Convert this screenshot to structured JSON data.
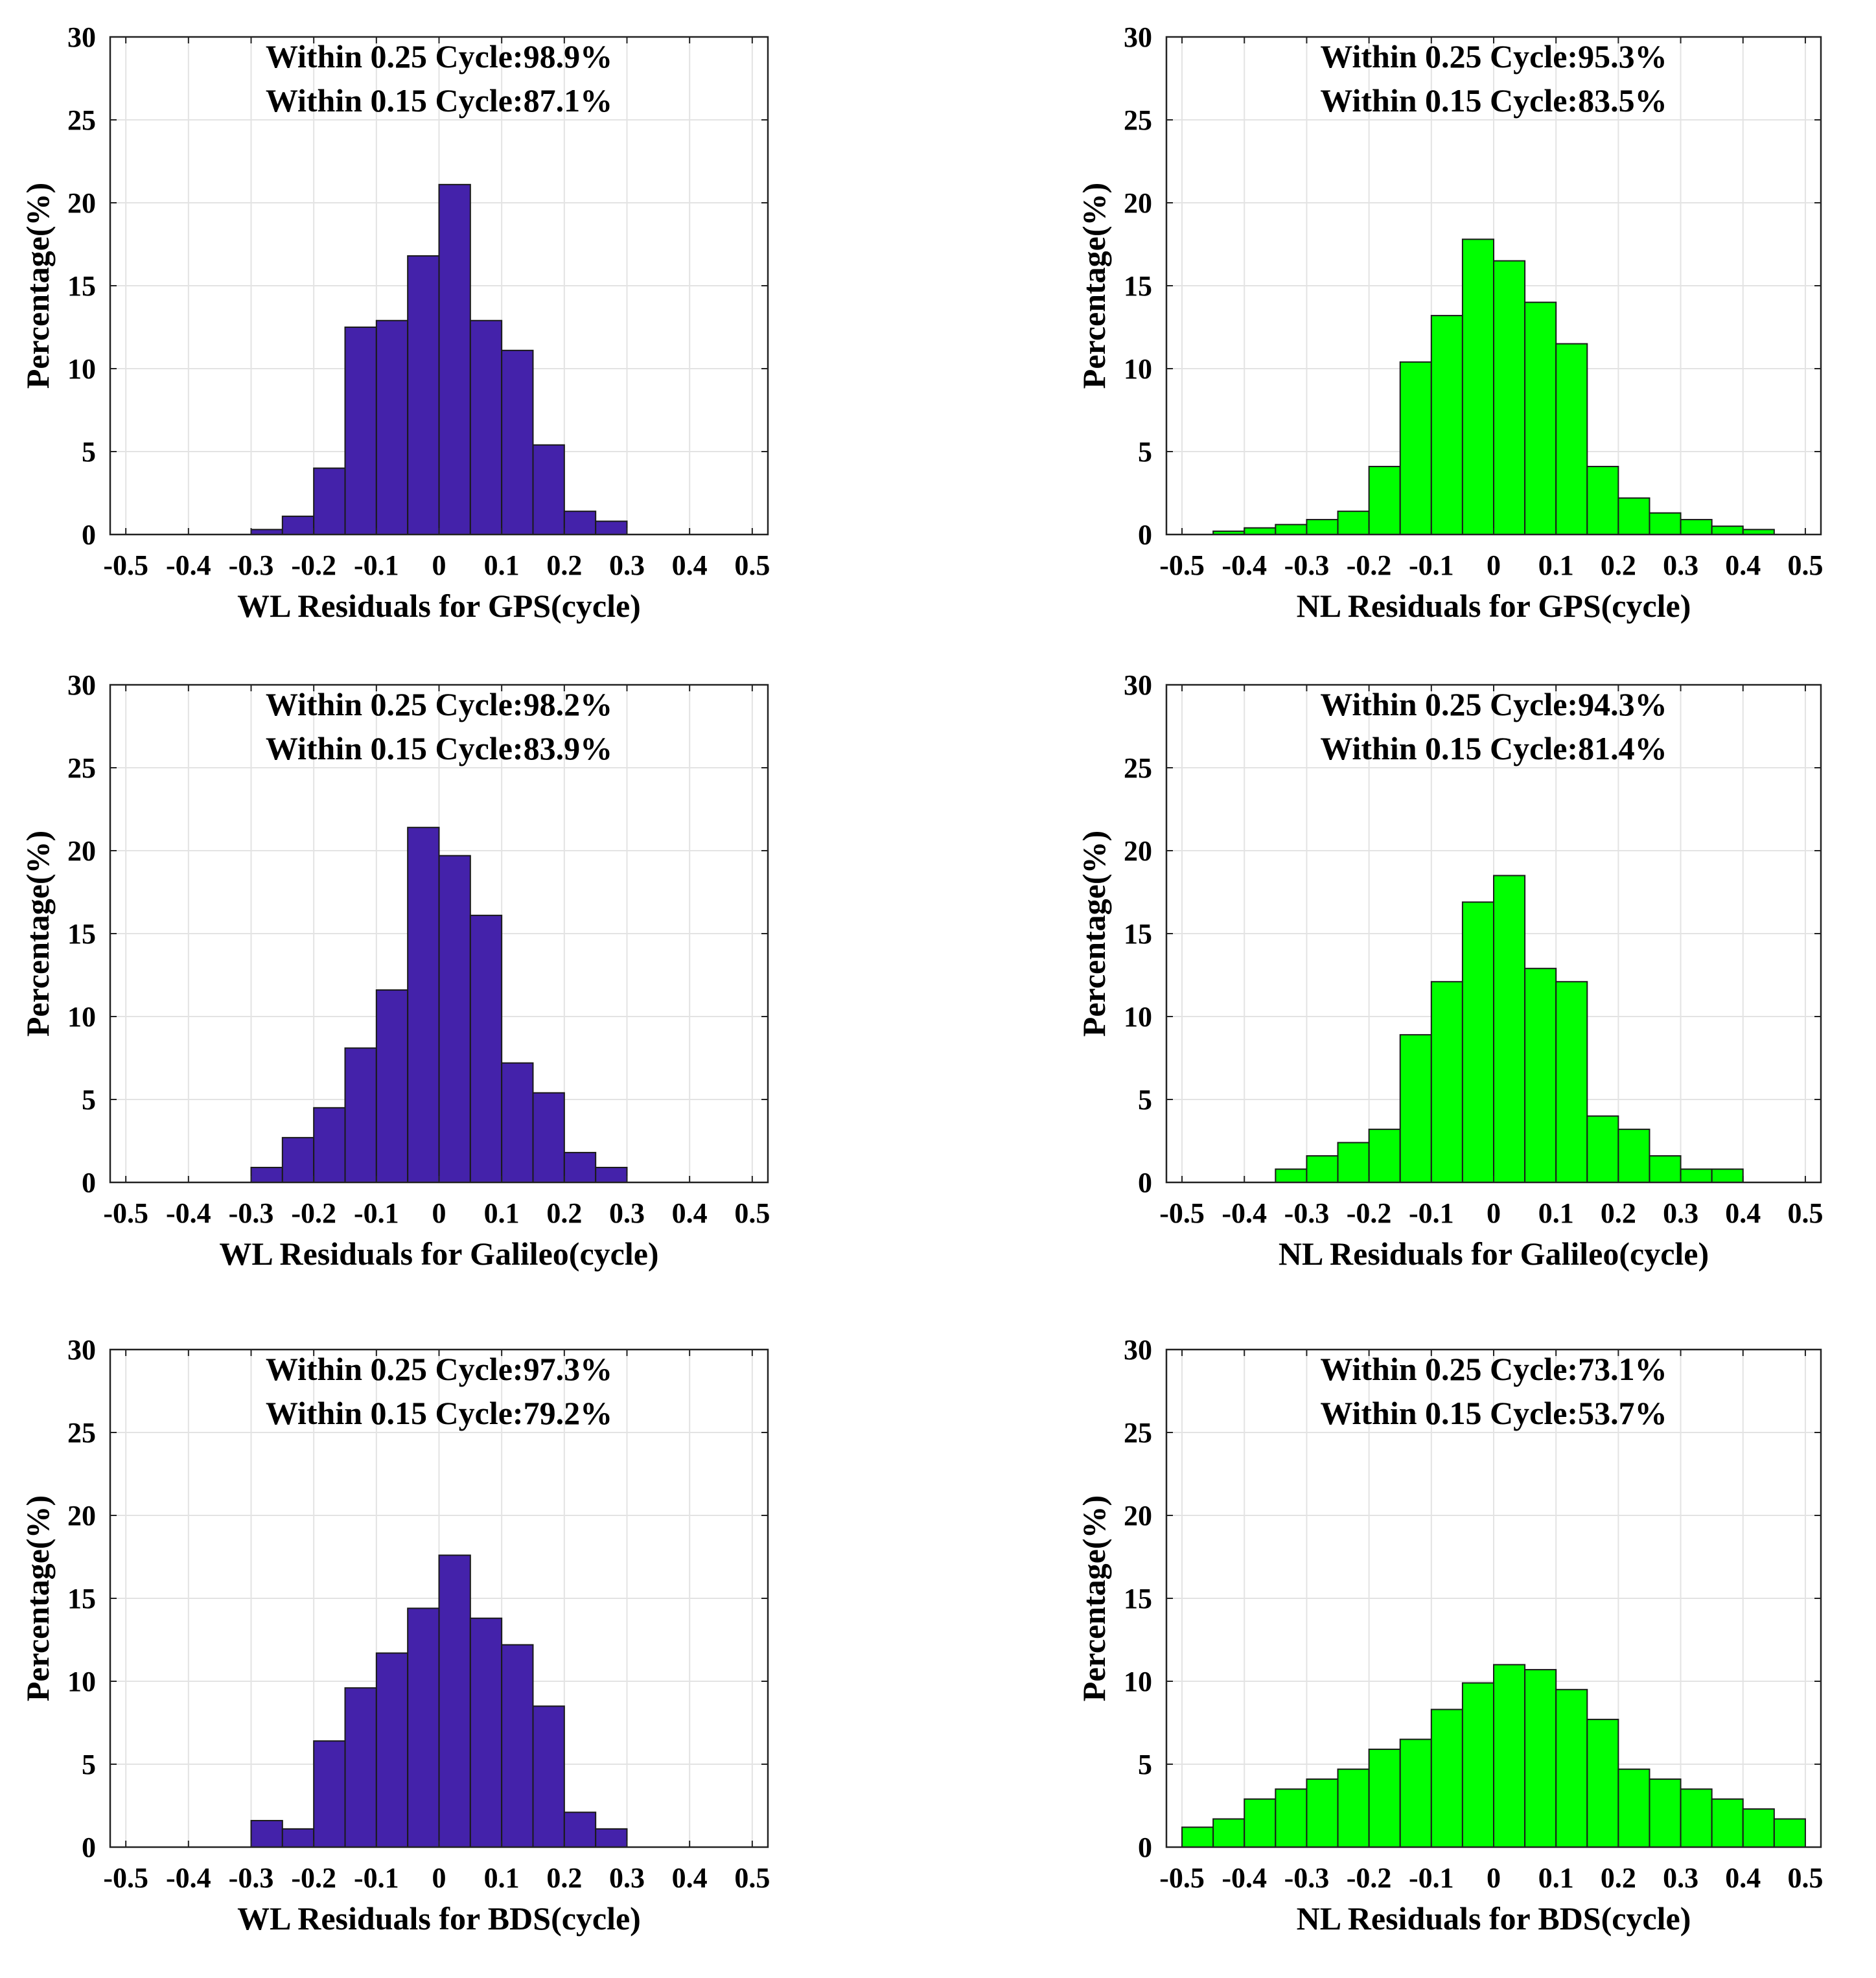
{
  "figure": {
    "colors": {
      "wl_bar": "#4422AA",
      "nl_bar": "#00FF00",
      "grid": "#e3e3e3"
    }
  },
  "chart_data": [
    {
      "type": "bar",
      "panel": "top-left",
      "xlabel": "WL Residuals for GPS(cycle)",
      "ylabel": "Percentage(%)",
      "annotations": [
        "Within 0.25 Cycle:98.9%",
        "Within 0.15 Cycle:87.1%"
      ],
      "xlim": [
        -0.525,
        0.525
      ],
      "ylim": [
        0,
        30
      ],
      "xticks": [
        -0.5,
        -0.4,
        -0.3,
        -0.2,
        -0.1,
        0,
        0.1,
        0.2,
        0.3,
        0.4,
        0.5
      ],
      "yticks": [
        0,
        5,
        10,
        15,
        20,
        25,
        30
      ],
      "bin_width": 0.05,
      "bin_starts": [
        -0.3,
        -0.25,
        -0.2,
        -0.15,
        -0.1,
        -0.05,
        0.0,
        0.05,
        0.1,
        0.15,
        0.2,
        0.25
      ],
      "values": [
        0.3,
        1.1,
        4.0,
        12.5,
        12.9,
        16.8,
        21.1,
        12.9,
        11.1,
        5.4,
        1.4,
        0.8
      ],
      "color": "#4422AA"
    },
    {
      "type": "bar",
      "panel": "top-right",
      "xlabel": "NL Residuals for GPS(cycle)",
      "ylabel": "Percentage(%)",
      "annotations": [
        "Within 0.25 Cycle:95.3%",
        "Within 0.15 Cycle:83.5%"
      ],
      "xlim": [
        -0.525,
        0.525
      ],
      "ylim": [
        0,
        30
      ],
      "xticks": [
        -0.5,
        -0.4,
        -0.3,
        -0.2,
        -0.1,
        0,
        0.1,
        0.2,
        0.3,
        0.4,
        0.5
      ],
      "yticks": [
        0,
        5,
        10,
        15,
        20,
        25,
        30
      ],
      "bin_width": 0.05,
      "bin_starts": [
        -0.45,
        -0.4,
        -0.35,
        -0.3,
        -0.25,
        -0.2,
        -0.15,
        -0.1,
        -0.05,
        0.0,
        0.05,
        0.1,
        0.15,
        0.2,
        0.25,
        0.3,
        0.35,
        0.4
      ],
      "values": [
        0.2,
        0.4,
        0.6,
        0.9,
        1.4,
        4.1,
        10.4,
        13.2,
        17.8,
        16.5,
        14.0,
        11.5,
        4.1,
        2.2,
        1.3,
        0.9,
        0.5,
        0.3
      ],
      "color": "#00FF00"
    },
    {
      "type": "bar",
      "panel": "middle-left",
      "xlabel": "WL Residuals for Galileo(cycle)",
      "ylabel": "Percentage(%)",
      "annotations": [
        "Within 0.25 Cycle:98.2%",
        "Within 0.15 Cycle:83.9%"
      ],
      "xlim": [
        -0.525,
        0.525
      ],
      "ylim": [
        0,
        30
      ],
      "xticks": [
        -0.5,
        -0.4,
        -0.3,
        -0.2,
        -0.1,
        0,
        0.1,
        0.2,
        0.3,
        0.4,
        0.5
      ],
      "yticks": [
        0,
        5,
        10,
        15,
        20,
        25,
        30
      ],
      "bin_width": 0.05,
      "bin_starts": [
        -0.3,
        -0.25,
        -0.2,
        -0.15,
        -0.1,
        -0.05,
        0.0,
        0.05,
        0.1,
        0.15,
        0.2,
        0.25
      ],
      "values": [
        0.9,
        2.7,
        4.5,
        8.1,
        11.6,
        21.4,
        19.7,
        16.1,
        7.2,
        5.4,
        1.8,
        0.9
      ],
      "color": "#4422AA"
    },
    {
      "type": "bar",
      "panel": "middle-right",
      "xlabel": "NL Residuals for Galileo(cycle)",
      "ylabel": "Percentage(%)",
      "annotations": [
        "Within 0.25 Cycle:94.3%",
        "Within 0.15 Cycle:81.4%"
      ],
      "xlim": [
        -0.525,
        0.525
      ],
      "ylim": [
        0,
        30
      ],
      "xticks": [
        -0.5,
        -0.4,
        -0.3,
        -0.2,
        -0.1,
        0,
        0.1,
        0.2,
        0.3,
        0.4,
        0.5
      ],
      "yticks": [
        0,
        5,
        10,
        15,
        20,
        25,
        30
      ],
      "bin_width": 0.05,
      "bin_starts": [
        -0.35,
        -0.3,
        -0.25,
        -0.2,
        -0.15,
        -0.1,
        -0.05,
        0.0,
        0.05,
        0.1,
        0.15,
        0.2,
        0.25,
        0.3,
        0.35
      ],
      "values": [
        0.8,
        1.6,
        2.4,
        3.2,
        8.9,
        12.1,
        16.9,
        18.5,
        12.9,
        12.1,
        4.0,
        3.2,
        1.6,
        0.8,
        0.8
      ],
      "color": "#00FF00"
    },
    {
      "type": "bar",
      "panel": "bottom-left",
      "xlabel": "WL Residuals for BDS(cycle)",
      "ylabel": "Percentage(%)",
      "annotations": [
        "Within 0.25 Cycle:97.3%",
        "Within 0.15 Cycle:79.2%"
      ],
      "xlim": [
        -0.525,
        0.525
      ],
      "ylim": [
        0,
        30
      ],
      "xticks": [
        -0.5,
        -0.4,
        -0.3,
        -0.2,
        -0.1,
        0,
        0.1,
        0.2,
        0.3,
        0.4,
        0.5
      ],
      "yticks": [
        0,
        5,
        10,
        15,
        20,
        25,
        30
      ],
      "bin_width": 0.05,
      "bin_starts": [
        -0.3,
        -0.25,
        -0.2,
        -0.15,
        -0.1,
        -0.05,
        0.0,
        0.05,
        0.1,
        0.15,
        0.2,
        0.25
      ],
      "values": [
        1.6,
        1.1,
        6.4,
        9.6,
        11.7,
        14.4,
        17.6,
        13.8,
        12.2,
        8.5,
        2.1,
        1.1
      ],
      "color": "#4422AA"
    },
    {
      "type": "bar",
      "panel": "bottom-right",
      "xlabel": "NL Residuals for BDS(cycle)",
      "ylabel": "Percentage(%)",
      "annotations": [
        "Within 0.25 Cycle:73.1%",
        "Within 0.15 Cycle:53.7%"
      ],
      "xlim": [
        -0.525,
        0.525
      ],
      "ylim": [
        0,
        30
      ],
      "xticks": [
        -0.5,
        -0.4,
        -0.3,
        -0.2,
        -0.1,
        0,
        0.1,
        0.2,
        0.3,
        0.4,
        0.5
      ],
      "yticks": [
        0,
        5,
        10,
        15,
        20,
        25,
        30
      ],
      "bin_width": 0.05,
      "bin_starts": [
        -0.5,
        -0.45,
        -0.4,
        -0.35,
        -0.3,
        -0.25,
        -0.2,
        -0.15,
        -0.1,
        -0.05,
        0.0,
        0.05,
        0.1,
        0.15,
        0.2,
        0.25,
        0.3,
        0.35,
        0.4,
        0.45
      ],
      "values": [
        1.2,
        1.7,
        2.9,
        3.5,
        4.1,
        4.7,
        5.9,
        6.5,
        8.3,
        9.9,
        11.0,
        10.7,
        9.5,
        7.7,
        4.7,
        4.1,
        3.5,
        2.9,
        2.3,
        1.7
      ],
      "color": "#00FF00"
    }
  ]
}
